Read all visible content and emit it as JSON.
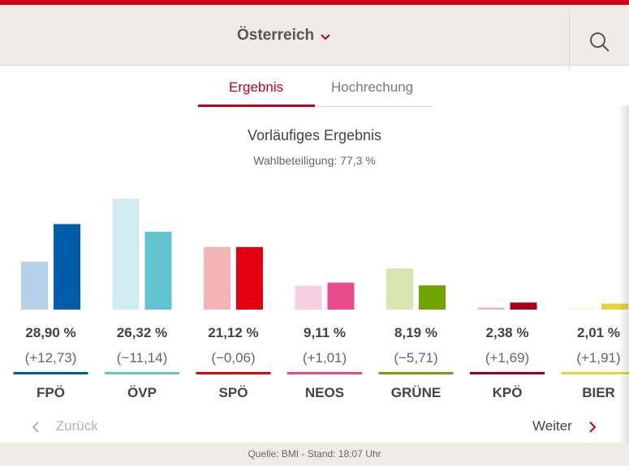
{
  "header": {
    "region": "Österreich"
  },
  "tabs": [
    {
      "label": "Ergebnis"
    },
    {
      "label": "Hochrechung"
    }
  ],
  "heading": "Vorläufiges Ergebnis",
  "turnout": "Wahlbeteiligung: 77,3 %",
  "nav": {
    "prev": "Zurück",
    "next": "Weiter"
  },
  "footer": "Quelle: BMI - Stand: 18:07 Uhr",
  "chart_data": {
    "type": "bar",
    "categories": [
      "FPÖ",
      "ÖVP",
      "SPÖ",
      "NEOS",
      "GRÜNE",
      "KPÖ",
      "BIER"
    ],
    "series": [
      {
        "values": [
          16.17,
          37.46,
          21.18,
          8.1,
          13.9,
          0.69,
          0.1
        ]
      },
      {
        "values": [
          28.9,
          26.32,
          21.12,
          9.11,
          8.19,
          2.38,
          2.01
        ]
      }
    ],
    "value_labels": [
      "28,90 %",
      "26,32 %",
      "21,12 %",
      "9,11 %",
      "8,19 %",
      "2,38 %",
      "2,01 %"
    ],
    "change_labels": [
      "(+12,73)",
      "(−11,14)",
      "(−0,06)",
      "(+1,01)",
      "(−5,71)",
      "(+1,69)",
      "(+1,91)"
    ],
    "colors": {
      "previous": [
        "#b5d0e8",
        "#d0ecf1",
        "#f5b5b7",
        "#f8cfe1",
        "#d7e5b1",
        "#f5b3c0",
        "#f9f4ce"
      ],
      "current": [
        "#005daa",
        "#63c3d1",
        "#e3000f",
        "#e84c8b",
        "#6ea500",
        "#a6001a",
        "#e6d43e"
      ]
    },
    "grid": false
  }
}
